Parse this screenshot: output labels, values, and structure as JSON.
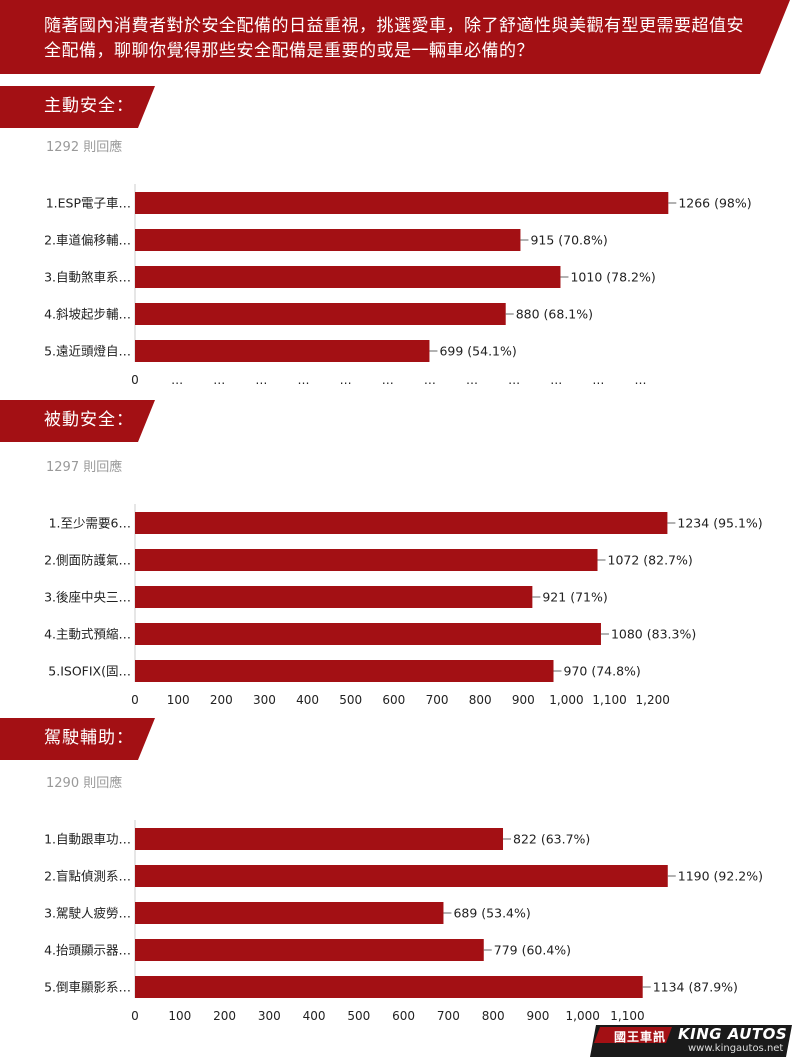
{
  "question": "隨著國內消費者對於安全配備的日益重視，挑選愛車，除了舒適性與美觀有型更需要超值安全配備，聊聊你覺得那些安全配備是重要的或是一輛車必備的？",
  "colors": {
    "brand": "#a31014",
    "bar": "#a31014",
    "muted": "#9a9a9a"
  },
  "sections": [
    {
      "title": "主動安全：",
      "responses": "1292 則回應"
    },
    {
      "title": "被動安全：",
      "responses": "1297 則回應"
    },
    {
      "title": "駕駛輔助：",
      "responses": "1290 則回應"
    }
  ],
  "chart_data": [
    {
      "type": "bar",
      "orientation": "horizontal",
      "title": "主動安全：",
      "categories": [
        "1.ESP電子車…",
        "2.車道偏移輔…",
        "3.自動煞車系…",
        "4.斜坡起步輔…",
        "5.遠近頭燈自…"
      ],
      "values": [
        1266,
        915,
        1010,
        880,
        699
      ],
      "data_labels": [
        "1266 (98%)",
        "915 (70.8%)",
        "1010 (78.2%)",
        "880 (68.1%)",
        "699 (54.1%)"
      ],
      "xlim": [
        0,
        1270
      ],
      "tick_labels": [
        "0",
        "…",
        "…",
        "…",
        "…",
        "…",
        "…",
        "…",
        "…",
        "…",
        "…",
        "…",
        "…"
      ],
      "grid": false
    },
    {
      "type": "bar",
      "orientation": "horizontal",
      "title": "被動安全：",
      "categories": [
        "1.至少需要6…",
        "2.側面防護氣…",
        "3.後座中央三…",
        "4.主動式預縮…",
        "5.ISOFIX(固…"
      ],
      "values": [
        1234,
        1072,
        921,
        1080,
        970
      ],
      "data_labels": [
        "1234 (95.1%)",
        "1072 (82.7%)",
        "921 (71%)",
        "1080 (83.3%)",
        "970 (74.8%)"
      ],
      "xlim": [
        0,
        1240
      ],
      "tick_labels": [
        "0",
        "100",
        "200",
        "300",
        "400",
        "500",
        "600",
        "700",
        "800",
        "900",
        "1,000",
        "1,100",
        "1,200"
      ],
      "grid": false
    },
    {
      "type": "bar",
      "orientation": "horizontal",
      "title": "駕駛輔助：",
      "categories": [
        "1.自動跟車功…",
        "2.盲點偵測系…",
        "3.駕駛人疲勞…",
        "4.抬頭顯示器…",
        "5.倒車顯影系…"
      ],
      "values": [
        822,
        1190,
        689,
        779,
        1134
      ],
      "data_labels": [
        "822 (63.7%)",
        "1190 (92.2%)",
        "689 (53.4%)",
        "779 (60.4%)",
        "1134 (87.9%)"
      ],
      "xlim": [
        0,
        1195
      ],
      "tick_labels": [
        "0",
        "100",
        "200",
        "300",
        "400",
        "500",
        "600",
        "700",
        "800",
        "900",
        "1,000",
        "1,100"
      ],
      "grid": false
    }
  ],
  "logo": {
    "cn": "國王車訊",
    "en": "KING AUTOS",
    "url": "www.kingautos.net"
  }
}
